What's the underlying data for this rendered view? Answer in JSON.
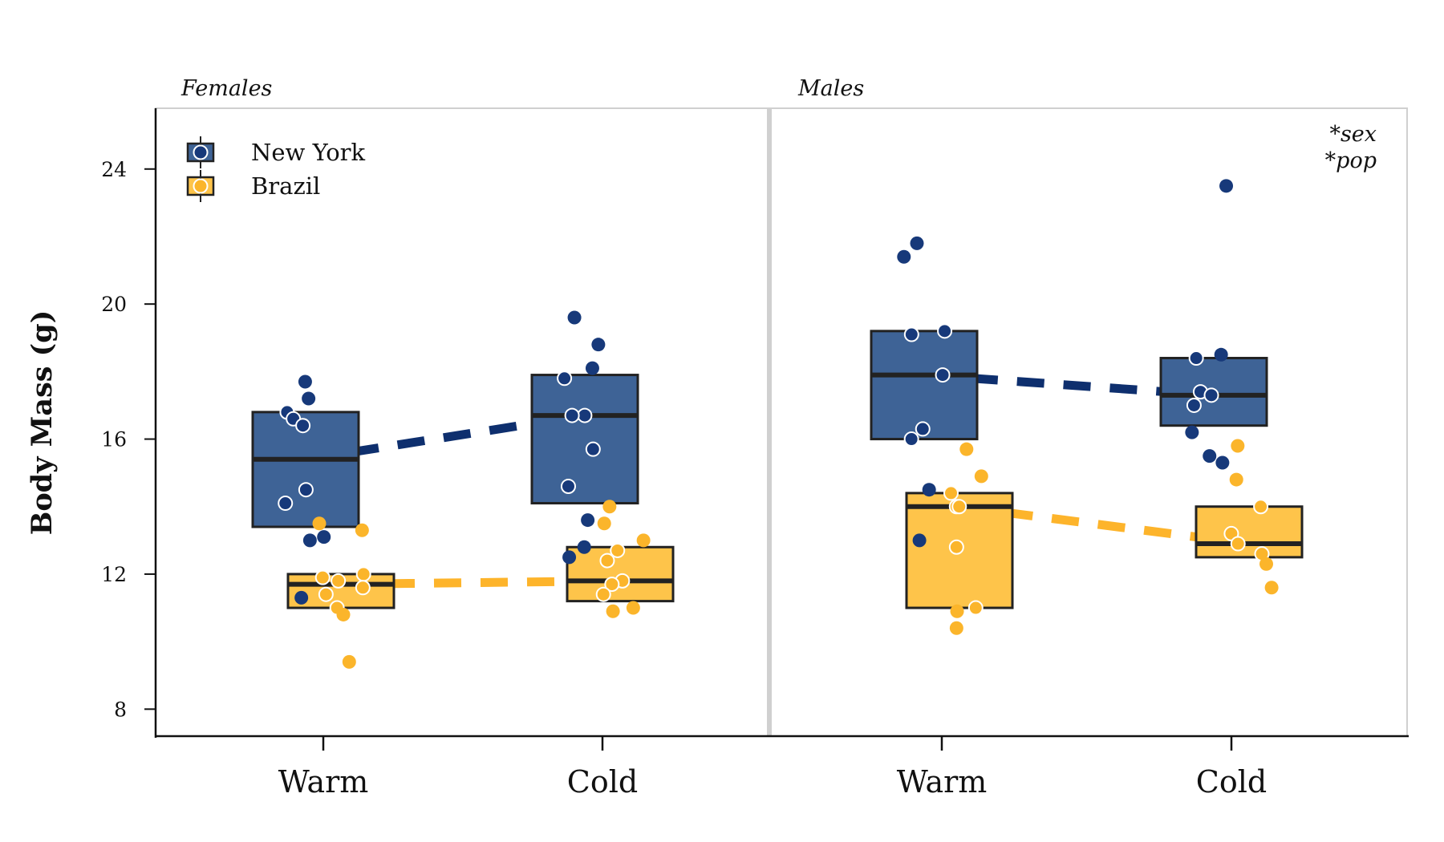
{
  "chart_data": {
    "type": "box",
    "ylabel": "Body Mass (g)",
    "ylim": [
      7.2,
      25.8
    ],
    "yticks": [
      8,
      12,
      16,
      20,
      24
    ],
    "categories": [
      "Warm",
      "Cold"
    ],
    "panels": [
      {
        "title": "Females",
        "groups": {
          "New York": {
            "Warm": {
              "box": [
                13.4,
                15.4,
                16.8
              ],
              "points": [
                17.7,
                17.2,
                16.8,
                16.6,
                16.4,
                14.5,
                14.1,
                13.1,
                13.0,
                11.3
              ]
            },
            "Cold": {
              "box": [
                14.1,
                16.7,
                17.9
              ],
              "points": [
                19.6,
                18.8,
                18.1,
                17.8,
                16.7,
                16.7,
                15.7,
                14.6,
                13.6,
                12.8,
                12.5
              ]
            }
          },
          "Brazil": {
            "Warm": {
              "box": [
                11.0,
                11.7,
                12.0
              ],
              "points": [
                13.5,
                13.3,
                12.0,
                11.9,
                11.8,
                11.6,
                11.4,
                11.0,
                10.8,
                9.4
              ]
            },
            "Cold": {
              "box": [
                11.2,
                11.8,
                12.8
              ],
              "points": [
                14.0,
                13.5,
                13.0,
                12.7,
                12.4,
                11.8,
                11.7,
                11.4,
                11.0,
                10.9
              ]
            }
          }
        }
      },
      {
        "title": "Males",
        "annotation": [
          "*sex",
          "*pop"
        ],
        "groups": {
          "New York": {
            "Warm": {
              "box": [
                16.0,
                17.9,
                19.2
              ],
              "points": [
                21.8,
                21.4,
                19.2,
                19.1,
                17.9,
                16.3,
                16.0,
                14.5,
                13.0
              ]
            },
            "Cold": {
              "box": [
                16.4,
                17.3,
                18.4
              ],
              "points": [
                23.5,
                18.5,
                18.4,
                17.4,
                17.3,
                17.0,
                16.2,
                15.5,
                15.3
              ]
            }
          },
          "Brazil": {
            "Warm": {
              "box": [
                11.0,
                14.0,
                14.4
              ],
              "points": [
                15.7,
                14.9,
                14.4,
                14.0,
                14.0,
                12.8,
                11.0,
                10.9,
                10.4
              ]
            },
            "Cold": {
              "box": [
                12.5,
                12.9,
                14.0
              ],
              "points": [
                15.8,
                14.8,
                14.0,
                13.2,
                12.9,
                12.6,
                12.3,
                11.6
              ]
            }
          }
        }
      }
    ],
    "legend": {
      "location": "upper-left",
      "entries": [
        {
          "name": "New York",
          "color": "#3e6396",
          "point": "#17397a",
          "trend": "#0e2f6e"
        },
        {
          "name": "Brazil",
          "color": "#fec44a",
          "point": "#fbb52b",
          "trend": "#fdb42b"
        }
      ]
    }
  }
}
